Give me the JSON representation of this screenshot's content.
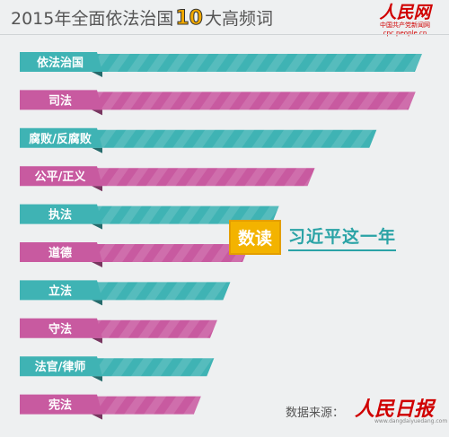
{
  "header": {
    "title_pre": "2015年全面依法治国",
    "title_num": "10",
    "title_post": "大高频词",
    "logo_brand": "人民网",
    "logo_sub": "中国共产党新闻网",
    "logo_url": "cpc.people.cn"
  },
  "tag": {
    "box": "数读",
    "text": "习近平这一年"
  },
  "source": {
    "label": "数据来源：",
    "brand": "人民日报",
    "url": "www.dangdaiyuedang.com"
  },
  "colors": {
    "teal": "#3fb3b4",
    "pink": "#c85aa0",
    "background": "#eef0f1"
  },
  "chart_data": {
    "type": "bar",
    "title": "2015年全面依法治国10大高频词",
    "categories": [
      "依法治国",
      "司法",
      "腐败/反腐败",
      "公平/正义",
      "执法",
      "道德",
      "立法",
      "守法",
      "法官/律师",
      "宪法"
    ],
    "values": [
      100,
      98,
      86,
      67,
      56,
      47,
      41,
      37,
      36,
      32
    ],
    "ylim": [
      0,
      100
    ],
    "series_colors": [
      "teal",
      "pink",
      "teal",
      "pink",
      "teal",
      "pink",
      "teal",
      "pink",
      "teal",
      "pink"
    ],
    "xlabel": "",
    "ylabel": ""
  }
}
